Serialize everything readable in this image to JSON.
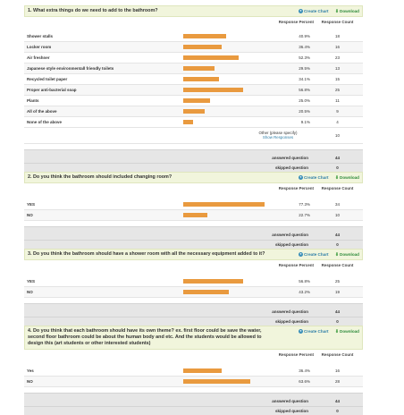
{
  "ui": {
    "create_chart_label": "Create Chart",
    "download_label": "Download",
    "response_percent_label": "Response Percent",
    "response_count_label": "Response Count",
    "answered_label": "answered question",
    "skipped_label": "skipped question",
    "bar_color": "#e99a3f",
    "header_bg": "#f1f5dc"
  },
  "q1": {
    "title": "1. What extra things do we need to add to the bathroom?",
    "rows": [
      {
        "label": "Shower stalls",
        "percent": "40.9%",
        "count": "18",
        "fraction": 0.409
      },
      {
        "label": "Locker room",
        "percent": "36.4%",
        "count": "16",
        "fraction": 0.364
      },
      {
        "label": "Air freshner",
        "percent": "52.3%",
        "count": "23",
        "fraction": 0.523
      },
      {
        "label": "Japanese style environmentall friendly toilets",
        "percent": "29.5%",
        "count": "13",
        "fraction": 0.295
      },
      {
        "label": "Recycled toilet paper",
        "percent": "34.1%",
        "count": "15",
        "fraction": 0.341
      },
      {
        "label": "Proper anti-bacterial soap",
        "percent": "56.8%",
        "count": "25",
        "fraction": 0.568
      },
      {
        "label": "Plants",
        "percent": "25.0%",
        "count": "11",
        "fraction": 0.25
      },
      {
        "label": "All of the above",
        "percent": "20.5%",
        "count": "9",
        "fraction": 0.205
      },
      {
        "label": "None of the above",
        "percent": "9.1%",
        "count": "4",
        "fraction": 0.091
      }
    ],
    "other_label": "Other (please specify)",
    "show_responses_label": "Show Responses",
    "other_count": "10",
    "answered": "44",
    "skipped": "0"
  },
  "q2": {
    "title": "2. Do you think the bathroom should included changing room?",
    "rows": [
      {
        "label": "YES",
        "percent": "77.3%",
        "count": "34",
        "fraction": 0.773
      },
      {
        "label": "NO",
        "percent": "22.7%",
        "count": "10",
        "fraction": 0.227
      }
    ],
    "answered": "44",
    "skipped": "0"
  },
  "q3": {
    "title": "3. Do you think the bathroom should have a shower room with all the necessary equipment added to it?",
    "rows": [
      {
        "label": "YES",
        "percent": "56.8%",
        "count": "25",
        "fraction": 0.568
      },
      {
        "label": "NO",
        "percent": "43.2%",
        "count": "19",
        "fraction": 0.432
      }
    ],
    "answered": "44",
    "skipped": "0"
  },
  "q4": {
    "title": "4. Do you think that each bathroom should have its own theme? ex. first floor could be save the water, second floor bathroom could be about the human body and etc. And the students would be allowed to design this (art students or other interested students)",
    "rows": [
      {
        "label": "Yes",
        "percent": "36.4%",
        "count": "16",
        "fraction": 0.364
      },
      {
        "label": "NO",
        "percent": "63.6%",
        "count": "28",
        "fraction": 0.636
      }
    ],
    "answered": "44",
    "skipped": "0"
  }
}
